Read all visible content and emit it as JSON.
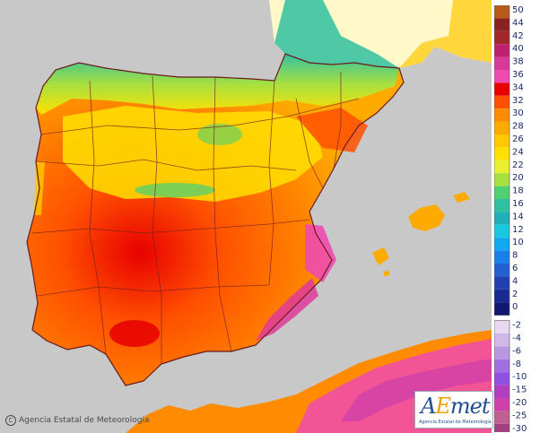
{
  "map": {
    "type": "temperature-map",
    "region": "Iberian Peninsula",
    "units": "°C",
    "colors": {
      "sea": "#c8c8c8",
      "france": "#fff8c8",
      "border": "#7a2020"
    }
  },
  "legend": {
    "positive": [
      {
        "label": "50",
        "color": "#b85a1a"
      },
      {
        "label": "44",
        "color": "#8b2020"
      },
      {
        "label": "42",
        "color": "#a02828"
      },
      {
        "label": "40",
        "color": "#c02070"
      },
      {
        "label": "38",
        "color": "#d83a9a"
      },
      {
        "label": "36",
        "color": "#f04ab0"
      },
      {
        "label": "34",
        "color": "#e80000"
      },
      {
        "label": "32",
        "color": "#ff5000"
      },
      {
        "label": "30",
        "color": "#ff8c00"
      },
      {
        "label": "28",
        "color": "#ffaa00"
      },
      {
        "label": "26",
        "color": "#ffc800"
      },
      {
        "label": "24",
        "color": "#ffe000"
      },
      {
        "label": "22",
        "color": "#e8f030"
      },
      {
        "label": "20",
        "color": "#a8e040"
      },
      {
        "label": "18",
        "color": "#50d070"
      },
      {
        "label": "16",
        "color": "#30c0a0"
      },
      {
        "label": "14",
        "color": "#20b0b8"
      },
      {
        "label": "12",
        "color": "#18c8e0"
      },
      {
        "label": "10",
        "color": "#10a8f0"
      },
      {
        "label": "8",
        "color": "#1880e8"
      },
      {
        "label": "6",
        "color": "#2060d0"
      },
      {
        "label": "4",
        "color": "#2040b0"
      },
      {
        "label": "2",
        "color": "#1a2a90"
      },
      {
        "label": "0",
        "color": "#101870"
      }
    ],
    "negative": [
      {
        "label": "-2",
        "color": "#e8d8f0"
      },
      {
        "label": "-4",
        "color": "#d0b8e8"
      },
      {
        "label": "-6",
        "color": "#b898e0"
      },
      {
        "label": "-8",
        "color": "#a070e0"
      },
      {
        "label": "-10",
        "color": "#9050e0"
      },
      {
        "label": "-15",
        "color": "#b040c0"
      },
      {
        "label": "-20",
        "color": "#d040a8"
      },
      {
        "label": "-25",
        "color": "#c06090"
      },
      {
        "label": "-30",
        "color": "#a04080"
      }
    ]
  },
  "credit": {
    "text": "Agencia Estatal de Meteorología",
    "copyright_symbol": "C"
  },
  "logo": {
    "brand_a": "A",
    "brand_e": "E",
    "brand_rest": "met",
    "agency": "Agencia Estatal de Meteorología"
  }
}
